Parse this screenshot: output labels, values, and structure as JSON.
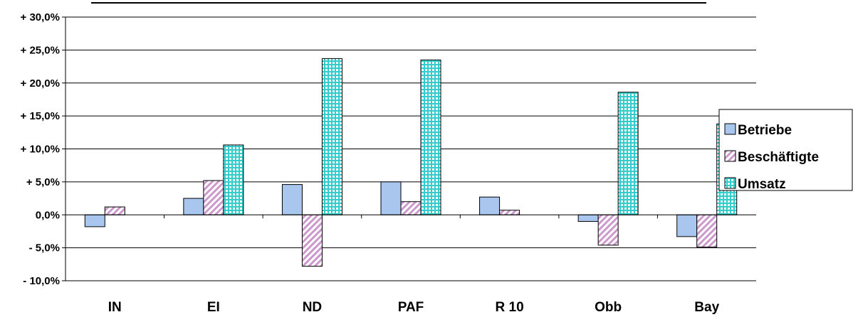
{
  "chart_data": {
    "type": "bar",
    "categories": [
      "IN",
      "EI",
      "ND",
      "PAF",
      "R 10",
      "Obb",
      "Bay"
    ],
    "series": [
      {
        "name": "Betriebe",
        "values": [
          -1.8,
          2.5,
          4.6,
          5.0,
          2.7,
          -1.0,
          -3.3
        ],
        "color": "#a9c6ef",
        "pattern": "solid"
      },
      {
        "name": "Beschäftigte",
        "values": [
          1.2,
          5.2,
          -7.8,
          2.0,
          0.7,
          -4.6,
          -4.9
        ],
        "color": "#cc99cc",
        "pattern": "diagonal"
      },
      {
        "name": "Umsatz",
        "values": [
          null,
          10.6,
          23.7,
          23.5,
          null,
          18.6,
          13.8
        ],
        "color": "#33cccc",
        "pattern": "grid"
      }
    ],
    "ylim": [
      -10,
      30
    ],
    "yticks": [
      30,
      25,
      20,
      15,
      10,
      5,
      0,
      -5,
      -10
    ],
    "ytick_labels": [
      "+ 30,0%",
      "+ 25,0%",
      "+ 20,0%",
      "+ 15,0%",
      "+ 10,0%",
      "+ 5,0%",
      "0,0%",
      "- 5,0%",
      "- 10,0%"
    ],
    "grid": true,
    "legend_position": "right",
    "title": "",
    "xlabel": "",
    "ylabel": ""
  }
}
